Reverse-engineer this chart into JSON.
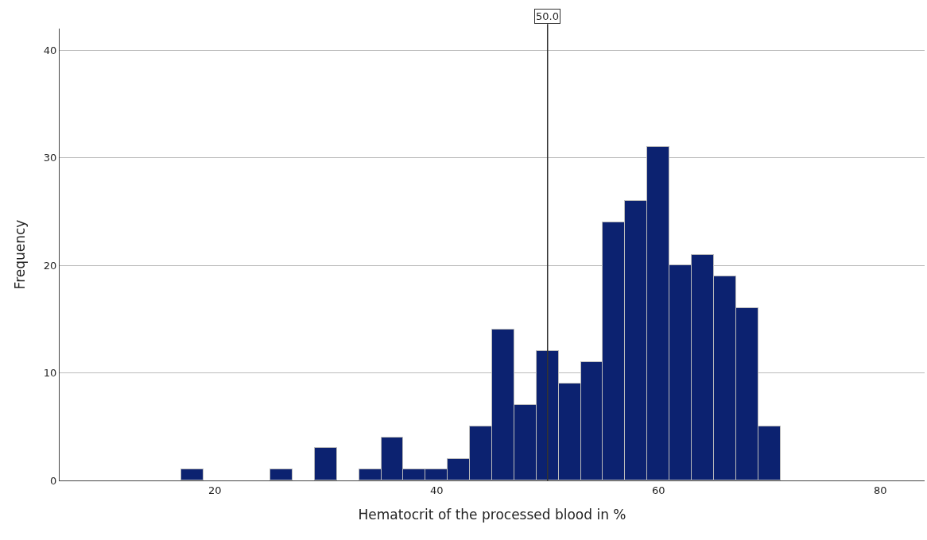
{
  "chart_data": {
    "type": "histogram",
    "xlabel": "Hematocrit of the processed blood in %",
    "ylabel": "Frequency",
    "bins": [
      17,
      19,
      21,
      23,
      25,
      27,
      29,
      31,
      33,
      35,
      37,
      39,
      41,
      43,
      45,
      47,
      49,
      51,
      53,
      55,
      57,
      59,
      61,
      63,
      65,
      67,
      69,
      71
    ],
    "values": [
      1,
      0,
      0,
      0,
      1,
      0,
      3,
      0,
      1,
      4,
      1,
      1,
      2,
      5,
      14,
      7,
      12,
      9,
      11,
      24,
      26,
      31,
      20,
      21,
      19,
      16,
      5
    ],
    "color": "#0c2270",
    "xlim": [
      6,
      84
    ],
    "xticks": [
      20,
      40,
      60,
      80
    ],
    "ylim": [
      0,
      42
    ],
    "yticks": [
      0,
      10,
      20,
      30,
      40
    ],
    "grid": "y",
    "ref_lines": [
      {
        "axis": "x",
        "value": 50,
        "label": "50.0",
        "color": "#333333"
      }
    ]
  }
}
